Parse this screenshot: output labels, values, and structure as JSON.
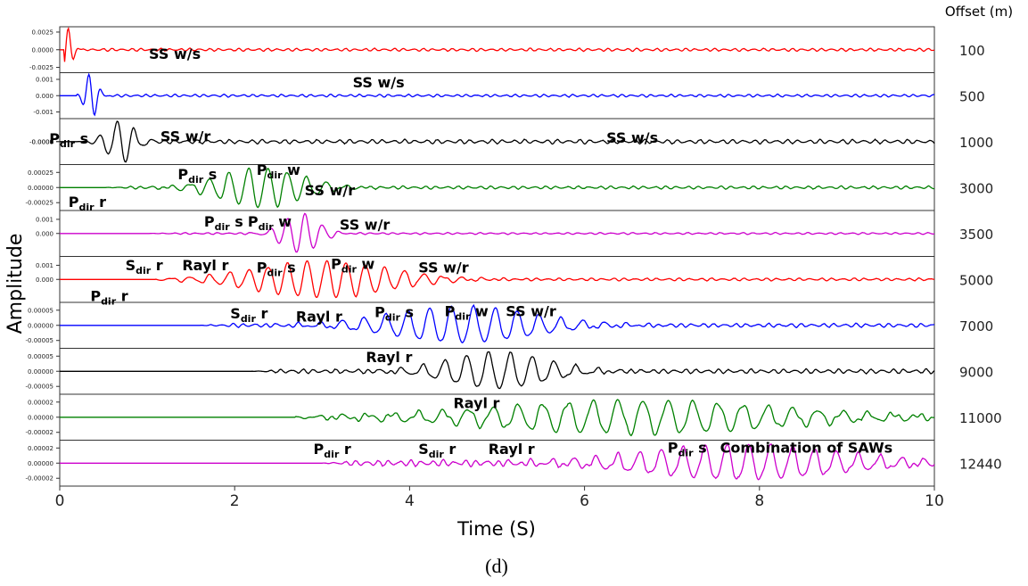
{
  "chart_data": {
    "type": "line",
    "title": "",
    "xlabel": "Time (S)",
    "ylabel": "Amplitude",
    "caption": "(d)",
    "offset_header": "Offset (m)",
    "xlim": [
      0,
      10
    ],
    "x_ticks": [
      "0",
      "2",
      "4",
      "6",
      "8",
      "10"
    ],
    "grid": false,
    "series": [
      {
        "offset": "100",
        "color": "#ff0000",
        "y_ticks": [
          "0.0025",
          "0.0000",
          "-0.0025"
        ],
        "ylim": [
          -0.003,
          0.003
        ],
        "onset": 0.05,
        "peak": 0.0032,
        "wave_center": 0.08,
        "wave_width": 0.06,
        "wave_freq": 8,
        "coda_amp": 0.00025,
        "coda_freq": 9
      },
      {
        "offset": "500",
        "color": "#0000ff",
        "y_ticks": [
          "0.001",
          "0.000",
          "-0.001"
        ],
        "ylim": [
          -0.0013,
          0.0013
        ],
        "onset": 0.2,
        "peak": 0.0014,
        "wave_center": 0.36,
        "wave_width": 0.07,
        "wave_freq": 7,
        "coda_amp": 0.0001,
        "coda_freq": 9
      },
      {
        "offset": "1000",
        "color": "#000000",
        "y_ticks": [
          "0.0000",
          "-0.0000"
        ],
        "ylim": [
          -0.0001,
          0.0001
        ],
        "onset": 0.2,
        "peak": 0.0001,
        "wave_center": 0.7,
        "wave_width": 0.15,
        "wave_freq": 5,
        "coda_amp": 1.2e-05,
        "coda_freq": 8
      },
      {
        "offset": "3000",
        "color": "#008000",
        "y_ticks": [
          "0.00025",
          "0.00000",
          "-0.00025"
        ],
        "ylim": [
          -0.00035,
          0.00035
        ],
        "onset": 0.5,
        "peak": 0.00033,
        "wave_center": 2.3,
        "wave_width": 0.45,
        "wave_freq": 4.5,
        "coda_amp": 3e-05,
        "coda_freq": 8
      },
      {
        "offset": "3500",
        "color": "#cc00cc",
        "y_ticks": [
          "0.001",
          "0.000"
        ],
        "ylim": [
          -0.0015,
          0.0015
        ],
        "onset": 1.0,
        "peak": 0.0014,
        "wave_center": 2.75,
        "wave_width": 0.2,
        "wave_freq": 5,
        "coda_amp": 8e-05,
        "coda_freq": 8
      },
      {
        "offset": "5000",
        "color": "#ff0000",
        "y_ticks": [
          "0.001",
          "0.000"
        ],
        "ylim": [
          -0.0015,
          0.0015
        ],
        "onset": 1.1,
        "peak": 0.0013,
        "wave_center": 3.0,
        "wave_width": 0.75,
        "wave_freq": 4.5,
        "coda_amp": 0.00012,
        "coda_freq": 8
      },
      {
        "offset": "7000",
        "color": "#0000ff",
        "y_ticks": [
          "0.00005",
          "0.00000",
          "-0.00005"
        ],
        "ylim": [
          -7e-05,
          7e-05
        ],
        "onset": 1.6,
        "peak": 6e-05,
        "wave_center": 4.6,
        "wave_width": 0.8,
        "wave_freq": 4,
        "coda_amp": 8e-06,
        "coda_freq": 8
      },
      {
        "offset": "9000",
        "color": "#000000",
        "y_ticks": [
          "0.00005",
          "0.00000",
          "-0.00005"
        ],
        "ylim": [
          -7e-05,
          7e-05
        ],
        "onset": 2.2,
        "peak": 6e-05,
        "wave_center": 5.0,
        "wave_width": 0.55,
        "wave_freq": 4,
        "coda_amp": 9e-06,
        "coda_freq": 8
      },
      {
        "offset": "11000",
        "color": "#008000",
        "y_ticks": [
          "0.00002",
          "0.00000",
          "-0.00002"
        ],
        "ylim": [
          -2.8e-05,
          2.8e-05
        ],
        "onset": 2.7,
        "peak": 2.2e-05,
        "wave_center": 6.6,
        "wave_width": 1.6,
        "wave_freq": 3.5,
        "coda_amp": 4e-06,
        "coda_freq": 8
      },
      {
        "offset": "12440",
        "color": "#cc00cc",
        "y_ticks": [
          "0.00002",
          "0.00000",
          "-0.00002"
        ],
        "ylim": [
          -2.8e-05,
          2.8e-05
        ],
        "onset": 3.0,
        "peak": 2.3e-05,
        "wave_center": 7.8,
        "wave_width": 1.1,
        "wave_freq": 4,
        "coda_amp": 5e-06,
        "coda_freq": 8
      }
    ],
    "annotations": [
      {
        "main": "SS w/s",
        "sub": "",
        "tail": "",
        "panel": 0,
        "x": 1.02,
        "level": 0.2
      },
      {
        "main": "SS w/s",
        "sub": "",
        "tail": "",
        "panel": 1,
        "x": 3.35,
        "level": -0.55
      },
      {
        "main": "P",
        "sub": "dir",
        "tail": "s",
        "panel": 2,
        "x": -0.12,
        "level": -0.1
      },
      {
        "main": "SS w/r",
        "sub": "",
        "tail": "",
        "panel": 2,
        "x": 1.15,
        "level": -0.2
      },
      {
        "main": "SS w/s",
        "sub": "",
        "tail": "",
        "panel": 2,
        "x": 6.25,
        "level": -0.15
      },
      {
        "main": "P",
        "sub": "dir",
        "tail": "s",
        "panel": 3,
        "x": 1.35,
        "level": -0.55
      },
      {
        "main": "P",
        "sub": "dir",
        "tail": "w",
        "panel": 3,
        "x": 2.25,
        "level": -0.75
      },
      {
        "main": "SS w/r",
        "sub": "",
        "tail": "",
        "panel": 3,
        "x": 2.8,
        "level": 0.15
      },
      {
        "main": "P",
        "sub": "dir",
        "tail": "r",
        "panel": 3,
        "x": 0.1,
        "level": 0.65
      },
      {
        "main": "P",
        "sub": "dir",
        "tail": "s",
        "panel": 4,
        "x": 1.65,
        "level": -0.5
      },
      {
        "main": "P",
        "sub": "dir",
        "tail": "w",
        "panel": 4,
        "x": 2.15,
        "level": -0.5
      },
      {
        "main": "SS w/r",
        "sub": "",
        "tail": "",
        "panel": 4,
        "x": 3.2,
        "level": -0.35
      },
      {
        "main": "S",
        "sub": "dir",
        "tail": "r",
        "panel": 5,
        "x": 0.75,
        "level": -0.6
      },
      {
        "main": "Rayl r",
        "sub": "",
        "tail": "",
        "panel": 5,
        "x": 1.4,
        "level": -0.6
      },
      {
        "main": "P",
        "sub": "dir",
        "tail": "s",
        "panel": 5,
        "x": 2.25,
        "level": -0.5
      },
      {
        "main": "P",
        "sub": "dir",
        "tail": "w",
        "panel": 5,
        "x": 3.1,
        "level": -0.65
      },
      {
        "main": "SS w/r",
        "sub": "",
        "tail": "",
        "panel": 5,
        "x": 4.1,
        "level": -0.5
      },
      {
        "main": "P",
        "sub": "dir",
        "tail": "r",
        "panel": 5,
        "x": 0.35,
        "level": 0.75
      },
      {
        "main": "S",
        "sub": "dir",
        "tail": "r",
        "panel": 6,
        "x": 1.95,
        "level": -0.5
      },
      {
        "main": "Rayl r",
        "sub": "",
        "tail": "",
        "panel": 6,
        "x": 2.7,
        "level": -0.35
      },
      {
        "main": "P",
        "sub": "dir",
        "tail": "s",
        "panel": 6,
        "x": 3.6,
        "level": -0.55
      },
      {
        "main": "P",
        "sub": "dir",
        "tail": "w",
        "panel": 6,
        "x": 4.4,
        "level": -0.6
      },
      {
        "main": "SS w/r",
        "sub": "",
        "tail": "",
        "panel": 6,
        "x": 5.1,
        "level": -0.6
      },
      {
        "main": "Rayl r",
        "sub": "",
        "tail": "",
        "panel": 7,
        "x": 3.5,
        "level": -0.6
      },
      {
        "main": "Rayl r",
        "sub": "",
        "tail": "",
        "panel": 8,
        "x": 4.5,
        "level": -0.6
      },
      {
        "main": "P",
        "sub": "dir",
        "tail": "r",
        "panel": 9,
        "x": 2.9,
        "level": -0.6
      },
      {
        "main": "S",
        "sub": "dir",
        "tail": "r",
        "panel": 9,
        "x": 4.1,
        "level": -0.6
      },
      {
        "main": "Rayl r",
        "sub": "",
        "tail": "",
        "panel": 9,
        "x": 4.9,
        "level": -0.6
      },
      {
        "main": "P",
        "sub": "dir",
        "tail": "s",
        "panel": 9,
        "x": 6.95,
        "level": -0.65
      },
      {
        "main": "Combination of SAWs",
        "sub": "",
        "tail": "",
        "panel": 9,
        "x": 7.55,
        "level": -0.65
      }
    ]
  }
}
